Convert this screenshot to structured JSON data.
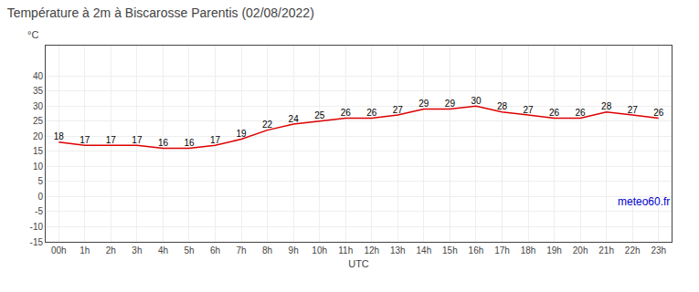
{
  "chart_data": {
    "type": "line",
    "title": "Température à 2m à Biscarosse Parentis (02/08/2022)",
    "xlabel": "UTC",
    "ylabel": "°C",
    "annotations": [
      "meteo60.fr"
    ],
    "x": [
      0,
      1,
      2,
      3,
      4,
      5,
      6,
      7,
      8,
      9,
      10,
      11,
      12,
      13,
      14,
      15,
      16,
      17,
      18,
      19,
      20,
      21,
      22,
      23
    ],
    "values": [
      18,
      17,
      17,
      17,
      16,
      16,
      17,
      19,
      22,
      24,
      25,
      26,
      26,
      27,
      29,
      29,
      30,
      28,
      27,
      26,
      26,
      28,
      27,
      26
    ],
    "color": "#dd0000",
    "xlim": [
      -0.5,
      23.5
    ],
    "xticks": [
      {
        "value": 0,
        "label": "00h"
      },
      {
        "value": 1,
        "label": "1h"
      },
      {
        "value": 2,
        "label": "2h"
      },
      {
        "value": 3,
        "label": "3h"
      },
      {
        "value": 4,
        "label": "4h"
      },
      {
        "value": 5,
        "label": "5h"
      },
      {
        "value": 6,
        "label": "6h"
      },
      {
        "value": 7,
        "label": "7h"
      },
      {
        "value": 8,
        "label": "8h"
      },
      {
        "value": 9,
        "label": "9h"
      },
      {
        "value": 10,
        "label": "10h"
      },
      {
        "value": 11,
        "label": "11h"
      },
      {
        "value": 12,
        "label": "12h"
      },
      {
        "value": 13,
        "label": "13h"
      },
      {
        "value": 14,
        "label": "14h"
      },
      {
        "value": 15,
        "label": "15h"
      },
      {
        "value": 16,
        "label": "16h"
      },
      {
        "value": 17,
        "label": "17h"
      },
      {
        "value": 18,
        "label": "18h"
      },
      {
        "value": 19,
        "label": "19h"
      },
      {
        "value": 20,
        "label": "20h"
      },
      {
        "value": 21,
        "label": "21h"
      },
      {
        "value": 22,
        "label": "22h"
      },
      {
        "value": 23,
        "label": "23h"
      }
    ],
    "ylim": [
      -15,
      50
    ],
    "yticks": [
      -15,
      -10,
      -5,
      0,
      5,
      10,
      15,
      20,
      25,
      30,
      35,
      40
    ],
    "grid": true,
    "data_labels": true
  }
}
